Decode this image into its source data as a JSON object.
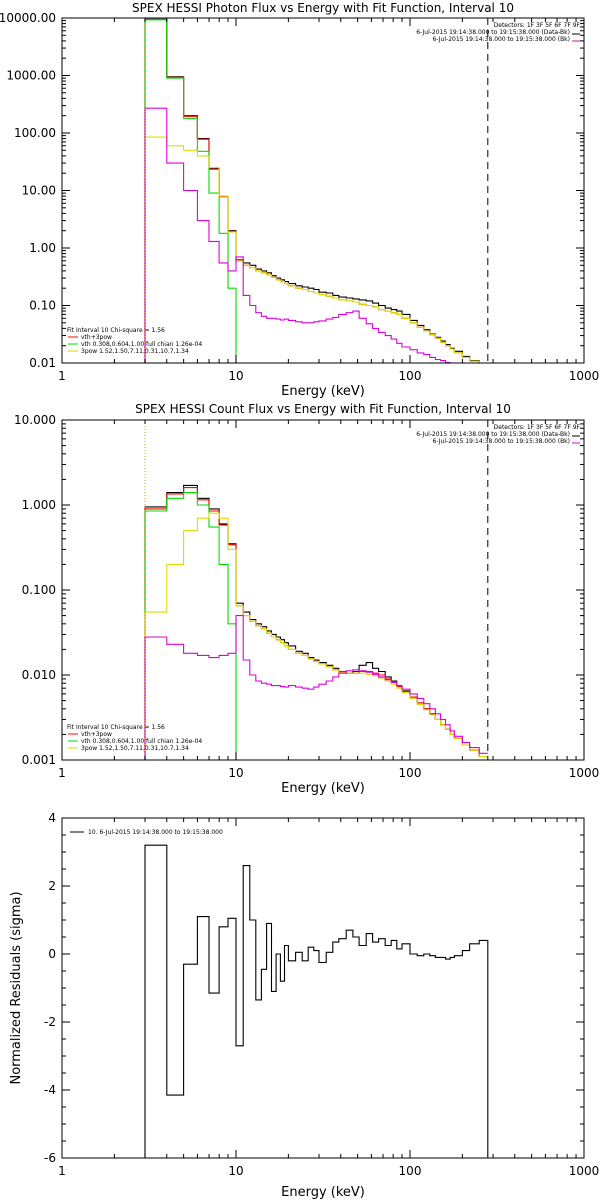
{
  "chart_data": [
    {
      "type": "line",
      "title": "SPEX HESSI Photon Flux vs Energy with Fit Function, Interval 10",
      "xlabel": "Energy (keV)",
      "ylabel": "",
      "xscale": "log",
      "yscale": "log",
      "xlim": [
        1,
        1000
      ],
      "ylim": [
        0.01,
        10000
      ],
      "xticklabels": [
        "1",
        "10",
        "100",
        "1000"
      ],
      "xtickvalues": [
        1,
        10,
        100,
        1000
      ],
      "yticklabels": [
        "0.01",
        "0.10",
        "1.00",
        "10.00",
        "100.00",
        "1000.00",
        "10000.00"
      ],
      "ytickvalues": [
        0.01,
        0.1,
        1,
        10,
        100,
        1000,
        10000
      ],
      "vlines": [
        {
          "x": 3,
          "style": "dotted",
          "color": "#ff8c00"
        },
        {
          "x": 280,
          "style": "dashed",
          "color": "#000000"
        }
      ],
      "header": [
        "Detectors: 1F 3F 5F 6F 7F 9F",
        "6-Jul-2015 19:14:38.000 to 19:15:38.000 (Data-Bk)",
        "6-Jul-2015 19:14:38.000 to 19:15:38.000 (Bk)"
      ],
      "legend": [
        "Fit Interval 10   Chi-square = 1.56",
        "vth+3pow",
        "vth 0.308,0.604,1.00  full chian 1.26e-04",
        "3pow 1.52,1.50,7.11,0.31,10.7,1.34"
      ],
      "edges": [
        3,
        4,
        5,
        6,
        7,
        8,
        9,
        10,
        11,
        12,
        13,
        14,
        15,
        16,
        17,
        18,
        19,
        20,
        22,
        24,
        26,
        28,
        30,
        33,
        36,
        39,
        43,
        47,
        51,
        56,
        61,
        66,
        72,
        78,
        84,
        90,
        100,
        110,
        120,
        130,
        140,
        150,
        160,
        170,
        180,
        200,
        220,
        250,
        280
      ],
      "series": [
        {
          "color": "#000000",
          "values": [
            9500,
            950,
            200,
            80,
            24,
            8,
            2,
            0.62,
            0.55,
            0.5,
            0.43,
            0.4,
            0.37,
            0.33,
            0.3,
            0.28,
            0.26,
            0.24,
            0.22,
            0.21,
            0.2,
            0.19,
            0.17,
            0.165,
            0.15,
            0.14,
            0.135,
            0.13,
            0.125,
            0.12,
            0.11,
            0.1,
            0.09,
            0.085,
            0.08,
            0.07,
            0.055,
            0.045,
            0.038,
            0.032,
            0.028,
            0.024,
            0.021,
            0.018,
            0.016,
            0.013,
            0.011,
            0.0098
          ]
        },
        {
          "color": "#ff0000",
          "values": [
            9400,
            930,
            195,
            78,
            23.5,
            7.8,
            1.95,
            0.6,
            0.5,
            0.45,
            0.4,
            0.37,
            0.34,
            0.31,
            0.28,
            0.26,
            0.24,
            0.22,
            0.2,
            0.19,
            0.175,
            0.165,
            0.155,
            0.145,
            0.135,
            0.125,
            0.12,
            0.115,
            0.105,
            0.1,
            0.095,
            0.085,
            0.08,
            0.075,
            0.07,
            0.06,
            0.05,
            0.042,
            0.036,
            0.031,
            0.027,
            0.023,
            0.02,
            0.0175,
            0.015,
            0.0125,
            0.0108,
            0.0096
          ]
        },
        {
          "color": "#00dd00",
          "values": [
            9300,
            900,
            180,
            48,
            9,
            1.8,
            0.2,
            0.01
          ]
        },
        {
          "color": "#dddd00",
          "values": [
            85,
            60,
            50,
            40,
            25,
            8,
            1.9,
            0.6,
            0.5,
            0.45,
            0.4,
            0.37,
            0.34,
            0.31,
            0.28,
            0.26,
            0.24,
            0.22,
            0.2,
            0.19,
            0.175,
            0.165,
            0.155,
            0.145,
            0.135,
            0.125,
            0.12,
            0.115,
            0.105,
            0.1,
            0.095,
            0.085,
            0.08,
            0.075,
            0.07,
            0.06,
            0.05,
            0.042,
            0.036,
            0.031,
            0.027,
            0.023,
            0.02,
            0.0175,
            0.015,
            0.0125,
            0.0108,
            0.0096
          ]
        },
        {
          "color": "#dd00dd",
          "values": [
            270,
            30,
            10,
            3,
            1.3,
            0.55,
            0.4,
            0.7,
            0.15,
            0.1,
            0.075,
            0.065,
            0.06,
            0.06,
            0.058,
            0.056,
            0.058,
            0.055,
            0.052,
            0.05,
            0.05,
            0.052,
            0.054,
            0.058,
            0.062,
            0.07,
            0.075,
            0.08,
            0.06,
            0.048,
            0.04,
            0.034,
            0.03,
            0.026,
            0.022,
            0.019,
            0.017,
            0.015,
            0.014,
            0.0125,
            0.0115,
            0.011,
            0.0102,
            0.0098,
            0.0092,
            0.0088
          ]
        }
      ]
    },
    {
      "type": "line",
      "title": "SPEX HESSI Count Flux vs Energy with Fit Function, Interval 10",
      "xlabel": "Energy (keV)",
      "ylabel": "",
      "xscale": "log",
      "yscale": "log",
      "xlim": [
        1,
        1000
      ],
      "ylim": [
        0.001,
        10
      ],
      "xticklabels": [
        "1",
        "10",
        "100",
        "1000"
      ],
      "xtickvalues": [
        1,
        10,
        100,
        1000
      ],
      "yticklabels": [
        "0.001",
        "0.010",
        "0.100",
        "1.000",
        "10.000"
      ],
      "ytickvalues": [
        0.001,
        0.01,
        0.1,
        1,
        10
      ],
      "vlines": [
        {
          "x": 3,
          "style": "dotted",
          "color": "#ff8c00"
        },
        {
          "x": 280,
          "style": "dashed",
          "color": "#000000"
        }
      ],
      "header": [
        "Detectors: 1F 3F 5F 6F 7F 9F",
        "6-Jul-2015 19:14:38.000 to 19:15:38.000 (Data-Bk)",
        "6-Jul-2015 19:14:38.000 to 19:15:38.000 (Bk)"
      ],
      "legend": [
        "Fit Interval 10   Chi-square = 1.56",
        "vth+3pow",
        "vth 0.308,0.604,1.00  full chian 1.26e-04",
        "3pow 1.52,1.50,7.11,0.31,10.7,1.34"
      ],
      "edges": [
        3,
        4,
        5,
        6,
        7,
        8,
        9,
        10,
        11,
        12,
        13,
        14,
        15,
        16,
        17,
        18,
        19,
        20,
        22,
        24,
        26,
        28,
        30,
        33,
        36,
        39,
        43,
        47,
        51,
        56,
        61,
        66,
        72,
        78,
        84,
        90,
        100,
        110,
        120,
        130,
        140,
        150,
        160,
        170,
        180,
        200,
        220,
        250,
        280
      ],
      "series": [
        {
          "color": "#000000",
          "values": [
            0.95,
            1.4,
            1.7,
            1.2,
            0.9,
            0.6,
            0.35,
            0.07,
            0.055,
            0.045,
            0.04,
            0.037,
            0.033,
            0.03,
            0.028,
            0.026,
            0.024,
            0.022,
            0.019,
            0.018,
            0.016,
            0.015,
            0.014,
            0.013,
            0.012,
            0.011,
            0.0105,
            0.011,
            0.013,
            0.014,
            0.012,
            0.011,
            0.0095,
            0.0085,
            0.0075,
            0.0065,
            0.0055,
            0.0047,
            0.004,
            0.0035,
            0.003,
            0.0026,
            0.0023,
            0.002,
            0.0018,
            0.0015,
            0.0013,
            0.0011
          ]
        },
        {
          "color": "#ff0000",
          "values": [
            0.9,
            1.35,
            1.6,
            1.15,
            0.85,
            0.58,
            0.34,
            0.065,
            0.05,
            0.043,
            0.038,
            0.035,
            0.031,
            0.028,
            0.026,
            0.024,
            0.022,
            0.02,
            0.018,
            0.017,
            0.0155,
            0.0145,
            0.0135,
            0.0125,
            0.0115,
            0.0108,
            0.0105,
            0.0105,
            0.011,
            0.011,
            0.0105,
            0.01,
            0.009,
            0.0082,
            0.0073,
            0.0064,
            0.0055,
            0.0047,
            0.004,
            0.0035,
            0.003,
            0.0026,
            0.0023,
            0.002,
            0.0018,
            0.0015,
            0.0013,
            0.0011
          ]
        },
        {
          "color": "#00dd00",
          "values": [
            0.85,
            1.2,
            1.4,
            1.0,
            0.55,
            0.2,
            0.04,
            0.001
          ]
        },
        {
          "color": "#dddd00",
          "values": [
            0.055,
            0.2,
            0.5,
            0.7,
            0.8,
            0.7,
            0.3,
            0.065,
            0.05,
            0.043,
            0.038,
            0.035,
            0.031,
            0.028,
            0.026,
            0.024,
            0.022,
            0.02,
            0.018,
            0.017,
            0.0155,
            0.0145,
            0.0135,
            0.0125,
            0.0115,
            0.0108,
            0.0105,
            0.0105,
            0.0105,
            0.0102,
            0.0098,
            0.0092,
            0.0085,
            0.0078,
            0.007,
            0.0062,
            0.0053,
            0.0045,
            0.0039,
            0.0034,
            0.003,
            0.0026,
            0.0023,
            0.002,
            0.0018,
            0.0015,
            0.0013,
            0.0011
          ]
        },
        {
          "color": "#dd00dd",
          "values": [
            0.028,
            0.023,
            0.018,
            0.017,
            0.016,
            0.017,
            0.018,
            0.05,
            0.015,
            0.01,
            0.0085,
            0.008,
            0.0078,
            0.0075,
            0.0075,
            0.0073,
            0.0072,
            0.0075,
            0.0072,
            0.007,
            0.0068,
            0.0072,
            0.0078,
            0.0085,
            0.0095,
            0.0105,
            0.0112,
            0.0115,
            0.0112,
            0.0108,
            0.0102,
            0.0095,
            0.0088,
            0.0082,
            0.0075,
            0.0068,
            0.006,
            0.0053,
            0.0046,
            0.004,
            0.0035,
            0.003,
            0.0026,
            0.0022,
            0.0019,
            0.0016,
            0.0014,
            0.0012
          ]
        }
      ]
    },
    {
      "type": "line",
      "title": "",
      "xlabel": "Energy (keV)",
      "ylabel": "Normalized Residuals (sigma)",
      "xscale": "log",
      "yscale": "linear",
      "xlim": [
        1,
        1000
      ],
      "ylim": [
        -6,
        4
      ],
      "xticklabels": [
        "1",
        "10",
        "100",
        "1000"
      ],
      "xtickvalues": [
        1,
        10,
        100,
        1000
      ],
      "yticklabels": [
        "-6",
        "-4",
        "-2",
        "0",
        "2",
        "4"
      ],
      "ytickvalues": [
        -6,
        -4,
        -2,
        0,
        2,
        4
      ],
      "legend": [
        "10.  6-Jul-2015 19:14:38.000 to 19:15:38.000"
      ],
      "edges": [
        3,
        4,
        5,
        6,
        7,
        8,
        9,
        10,
        11,
        12,
        13,
        14,
        15,
        16,
        17,
        18,
        19,
        20,
        22,
        24,
        26,
        28,
        30,
        33,
        36,
        39,
        43,
        47,
        51,
        56,
        61,
        66,
        72,
        78,
        84,
        90,
        100,
        110,
        120,
        130,
        140,
        150,
        160,
        170,
        180,
        200,
        220,
        250,
        280
      ],
      "series": [
        {
          "color": "#000000",
          "values": [
            3.2,
            -4.15,
            -0.3,
            1.1,
            -1.15,
            0.8,
            1.05,
            -2.7,
            2.6,
            1.0,
            -1.35,
            -0.45,
            0.9,
            -1.1,
            0.0,
            -0.8,
            0.25,
            -0.2,
            0.05,
            -0.2,
            0.2,
            0.1,
            -0.25,
            0.05,
            0.35,
            0.45,
            0.7,
            0.5,
            0.25,
            0.6,
            0.35,
            0.45,
            0.25,
            0.4,
            0.15,
            0.3,
            0.0,
            -0.05,
            0.0,
            -0.05,
            -0.1,
            -0.1,
            -0.15,
            -0.1,
            -0.05,
            0.1,
            0.3,
            0.4
          ]
        }
      ]
    }
  ]
}
